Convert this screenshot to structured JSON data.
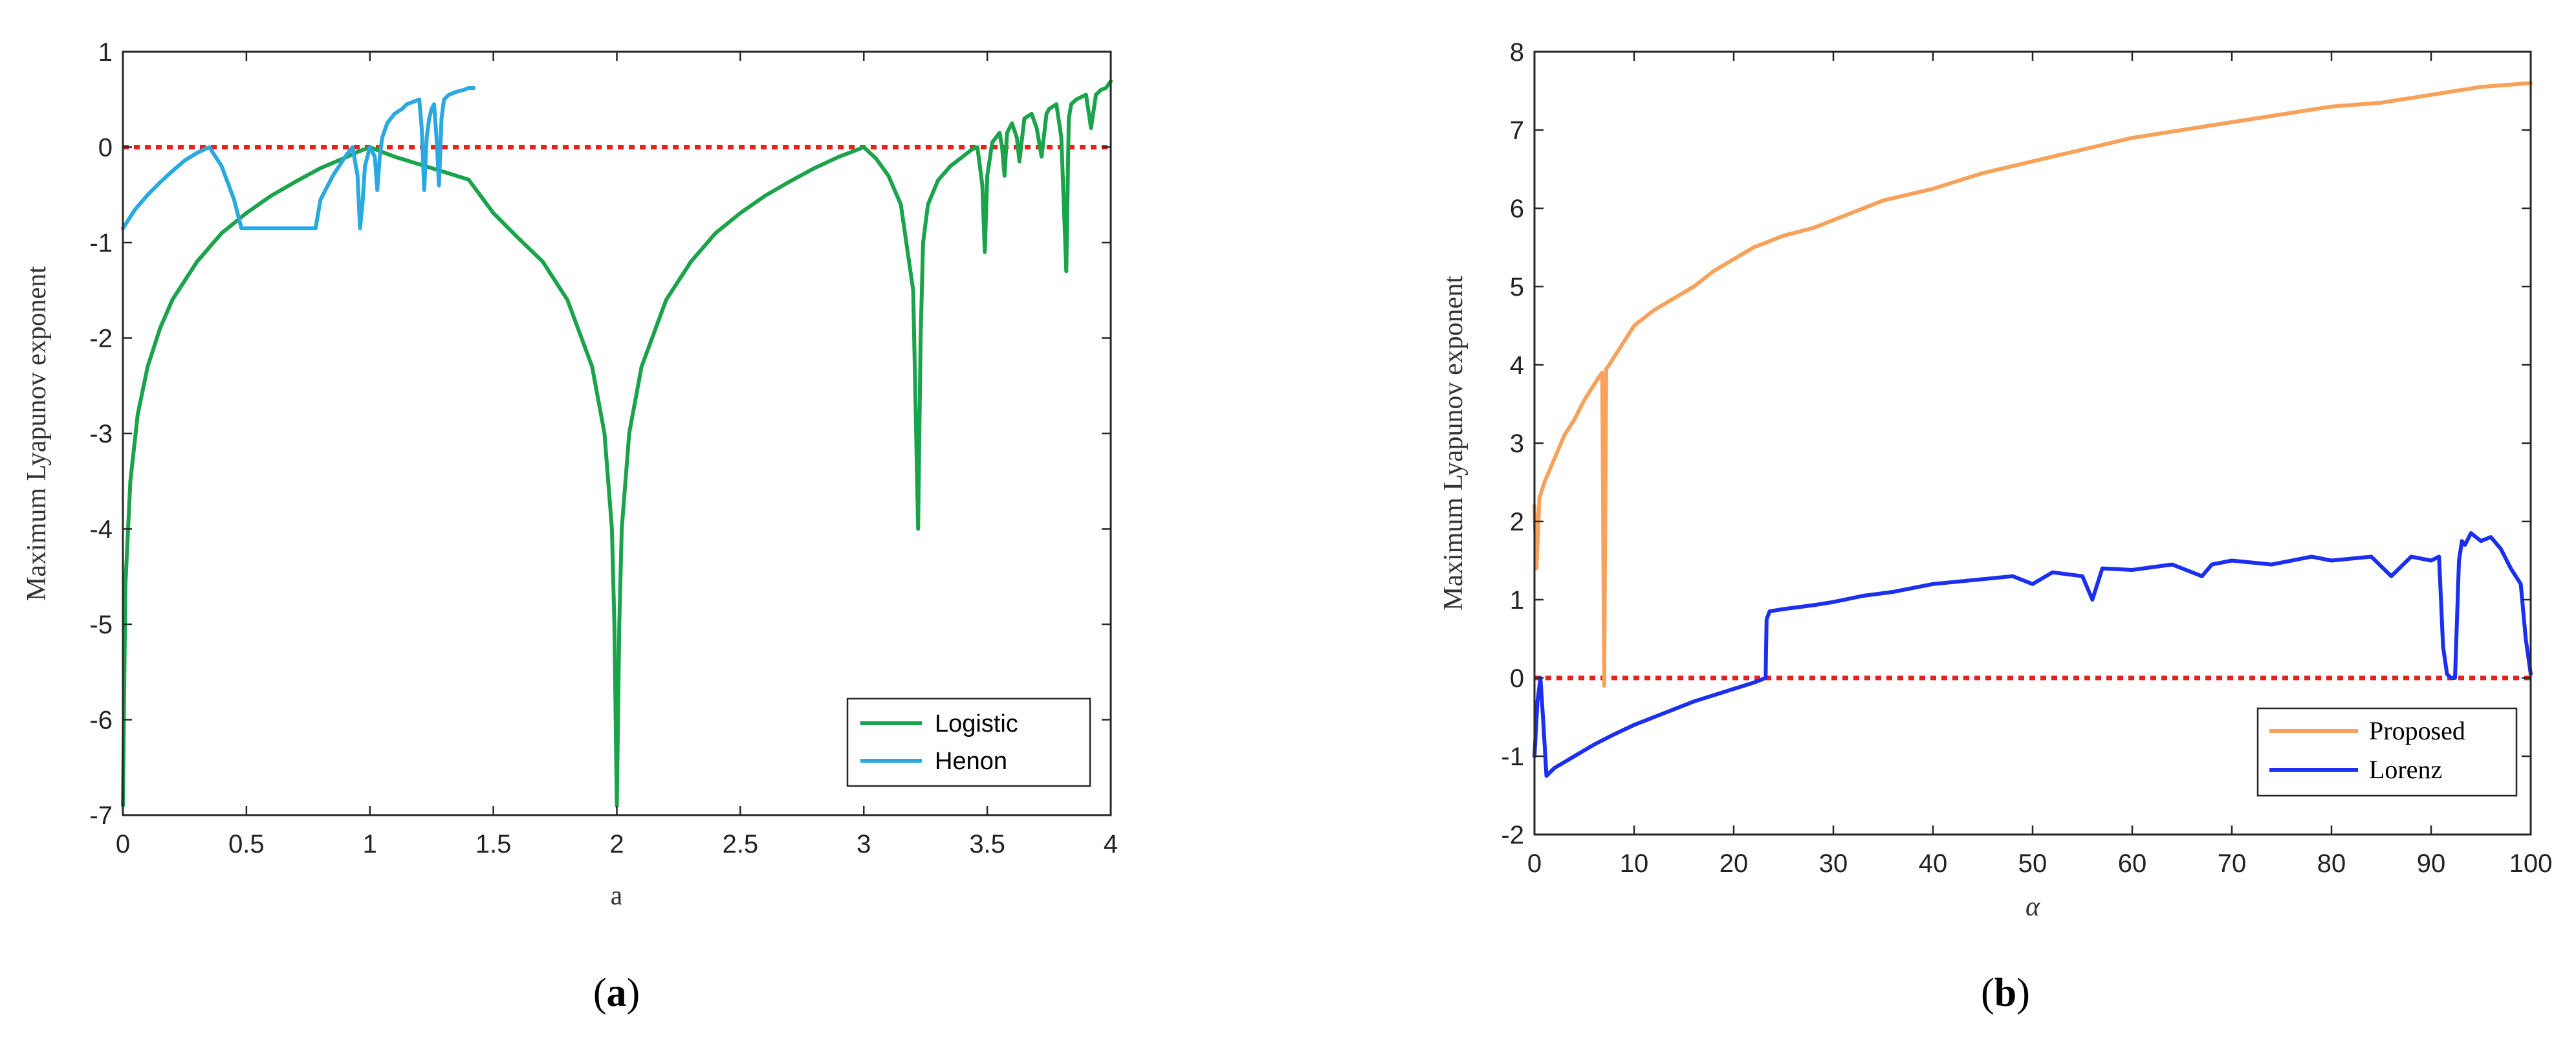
{
  "chart_data": [
    {
      "type": "line",
      "panel_label": "a",
      "caption_open": "(",
      "caption_close": ")",
      "xlabel": "a",
      "ylabel": "Maximum Lyapunov exponent",
      "xlim": [
        0,
        4
      ],
      "ylim": [
        -7,
        1
      ],
      "xticks": [
        "0",
        "0.5",
        "1",
        "1.5",
        "2",
        "2.5",
        "3",
        "3.5",
        "4"
      ],
      "xtick_values": [
        0,
        0.5,
        1,
        1.5,
        2,
        2.5,
        3,
        3.5,
        4
      ],
      "yticks": [
        "-7",
        "-6",
        "-5",
        "-4",
        "-3",
        "-2",
        "-1",
        "0",
        "1"
      ],
      "ytick_values": [
        -7,
        -6,
        -5,
        -4,
        -3,
        -2,
        -1,
        0,
        1
      ],
      "reference_line": {
        "y": 0,
        "color": "#e8211c",
        "style": "dotted"
      },
      "legend_position": "bottom-right",
      "series": [
        {
          "name": "Logistic",
          "color": "#1aa34a",
          "x": [
            0.0,
            0.01,
            0.03,
            0.06,
            0.1,
            0.15,
            0.2,
            0.3,
            0.4,
            0.5,
            0.6,
            0.7,
            0.8,
            0.9,
            0.95,
            1.0,
            1.05,
            1.1,
            1.2,
            1.3,
            1.4,
            1.5,
            1.6,
            1.7,
            1.8,
            1.9,
            1.95,
            1.98,
            1.99,
            2.0,
            2.01,
            2.02,
            2.05,
            2.1,
            2.2,
            2.3,
            2.4,
            2.5,
            2.6,
            2.7,
            2.8,
            2.9,
            2.95,
            3.0,
            3.05,
            3.1,
            3.15,
            3.2,
            3.22,
            3.23,
            3.24,
            3.26,
            3.3,
            3.35,
            3.4,
            3.44,
            3.46,
            3.48,
            3.49,
            3.5,
            3.52,
            3.55,
            3.56,
            3.57,
            3.58,
            3.6,
            3.62,
            3.63,
            3.65,
            3.68,
            3.7,
            3.72,
            3.74,
            3.75,
            3.78,
            3.8,
            3.82,
            3.83,
            3.84,
            3.86,
            3.9,
            3.92,
            3.94,
            3.96,
            3.98,
            4.0
          ],
          "y": [
            -6.9,
            -4.6,
            -3.5,
            -2.8,
            -2.3,
            -1.9,
            -1.6,
            -1.2,
            -0.9,
            -0.69,
            -0.51,
            -0.36,
            -0.22,
            -0.11,
            -0.05,
            0.0,
            -0.05,
            -0.1,
            -0.18,
            -0.26,
            -0.34,
            -0.69,
            -0.95,
            -1.2,
            -1.6,
            -2.3,
            -3.0,
            -4.0,
            -5.0,
            -6.9,
            -5.0,
            -4.0,
            -3.0,
            -2.3,
            -1.6,
            -1.2,
            -0.9,
            -0.69,
            -0.51,
            -0.36,
            -0.22,
            -0.1,
            -0.05,
            0.0,
            -0.12,
            -0.3,
            -0.6,
            -1.5,
            -4.0,
            -2.0,
            -1.0,
            -0.6,
            -0.35,
            -0.2,
            -0.1,
            -0.02,
            0.0,
            -0.4,
            -1.1,
            -0.3,
            0.05,
            0.15,
            0.0,
            -0.3,
            0.15,
            0.25,
            0.1,
            -0.15,
            0.3,
            0.35,
            0.2,
            -0.1,
            0.35,
            0.4,
            0.45,
            0.1,
            -1.3,
            0.3,
            0.45,
            0.5,
            0.55,
            0.2,
            0.55,
            0.6,
            0.62,
            0.69
          ]
        },
        {
          "name": "Henon",
          "color": "#29a9e0",
          "x": [
            0.0,
            0.05,
            0.1,
            0.15,
            0.2,
            0.25,
            0.3,
            0.35,
            0.4,
            0.45,
            0.48,
            0.5,
            0.6,
            0.7,
            0.78,
            0.8,
            0.85,
            0.9,
            0.93,
            0.95,
            0.96,
            0.97,
            0.98,
            1.0,
            1.02,
            1.03,
            1.04,
            1.05,
            1.07,
            1.1,
            1.13,
            1.15,
            1.18,
            1.2,
            1.21,
            1.22,
            1.23,
            1.24,
            1.25,
            1.26,
            1.27,
            1.28,
            1.29,
            1.3,
            1.32,
            1.35,
            1.38,
            1.4,
            1.42
          ],
          "y": [
            -0.85,
            -0.65,
            -0.5,
            -0.37,
            -0.25,
            -0.14,
            -0.06,
            0.0,
            -0.2,
            -0.55,
            -0.85,
            -0.85,
            -0.85,
            -0.85,
            -0.85,
            -0.55,
            -0.3,
            -0.1,
            0.0,
            -0.3,
            -0.85,
            -0.6,
            -0.2,
            0.0,
            -0.1,
            -0.45,
            -0.1,
            0.1,
            0.25,
            0.35,
            0.4,
            0.45,
            0.48,
            0.5,
            0.2,
            -0.45,
            0.1,
            0.3,
            0.4,
            0.45,
            0.1,
            -0.4,
            0.3,
            0.5,
            0.55,
            0.58,
            0.6,
            0.62,
            0.62
          ]
        }
      ]
    },
    {
      "type": "line",
      "panel_label": "b",
      "caption_open": "(",
      "caption_close": ")",
      "xlabel": "α",
      "ylabel": "Maximum Lyapunov exponent",
      "xlim": [
        0,
        100
      ],
      "ylim": [
        -2,
        8
      ],
      "xticks": [
        "0",
        "10",
        "20",
        "30",
        "40",
        "50",
        "60",
        "70",
        "80",
        "90",
        "100"
      ],
      "xtick_values": [
        0,
        10,
        20,
        30,
        40,
        50,
        60,
        70,
        80,
        90,
        100
      ],
      "yticks": [
        "-2",
        "-1",
        "0",
        "1",
        "2",
        "3",
        "4",
        "5",
        "6",
        "7",
        "8"
      ],
      "ytick_values": [
        -2,
        -1,
        0,
        1,
        2,
        3,
        4,
        5,
        6,
        7,
        8
      ],
      "reference_line": {
        "y": 0,
        "color": "#e8211c",
        "style": "dotted"
      },
      "legend_position": "bottom-right",
      "series": [
        {
          "name": "Proposed",
          "color": "#f7a15a",
          "x": [
            0.0,
            0.2,
            0.5,
            1,
            2,
            3,
            4,
            5,
            6,
            6.5,
            6.8,
            7.0,
            7.2,
            7.5,
            8,
            9,
            10,
            12,
            14,
            16,
            18,
            20,
            22,
            25,
            28,
            30,
            35,
            40,
            45,
            50,
            55,
            60,
            65,
            70,
            75,
            80,
            85,
            90,
            95,
            100
          ],
          "y": [
            2.2,
            1.4,
            2.3,
            2.5,
            2.8,
            3.1,
            3.3,
            3.55,
            3.75,
            3.85,
            3.9,
            -0.1,
            3.95,
            4.0,
            4.1,
            4.3,
            4.5,
            4.7,
            4.85,
            5.0,
            5.2,
            5.35,
            5.5,
            5.65,
            5.75,
            5.85,
            6.1,
            6.25,
            6.45,
            6.6,
            6.75,
            6.9,
            7.0,
            7.1,
            7.2,
            7.3,
            7.35,
            7.45,
            7.55,
            7.6
          ]
        },
        {
          "name": "Lorenz",
          "color": "#1a2ff0",
          "x": [
            0.0,
            0.3,
            0.6,
            0.9,
            1.2,
            2,
            4,
            6,
            8,
            10,
            12,
            14,
            16,
            18,
            20,
            22,
            23.2,
            23.3,
            23.6,
            25,
            28,
            30,
            33,
            36,
            40,
            44,
            48,
            50,
            52,
            55,
            56,
            57,
            60,
            64,
            67,
            68,
            70,
            74,
            78,
            80,
            84,
            86,
            88,
            90,
            90.8,
            91.2,
            91.6,
            92.0,
            92.4,
            92.8,
            93.1,
            93.4,
            94,
            95,
            96,
            97,
            98,
            99,
            99.5,
            100
          ],
          "y": [
            -1.0,
            -0.3,
            0.0,
            -0.6,
            -1.25,
            -1.15,
            -1.0,
            -0.85,
            -0.72,
            -0.6,
            -0.5,
            -0.4,
            -0.3,
            -0.22,
            -0.14,
            -0.06,
            0.0,
            0.75,
            0.85,
            0.88,
            0.93,
            0.97,
            1.05,
            1.1,
            1.2,
            1.25,
            1.3,
            1.2,
            1.35,
            1.3,
            1.0,
            1.4,
            1.38,
            1.45,
            1.3,
            1.45,
            1.5,
            1.45,
            1.55,
            1.5,
            1.55,
            1.3,
            1.55,
            1.5,
            1.55,
            0.4,
            0.05,
            0.0,
            0.0,
            1.5,
            1.75,
            1.7,
            1.85,
            1.75,
            1.8,
            1.65,
            1.4,
            1.2,
            0.5,
            0.05
          ]
        }
      ]
    }
  ]
}
